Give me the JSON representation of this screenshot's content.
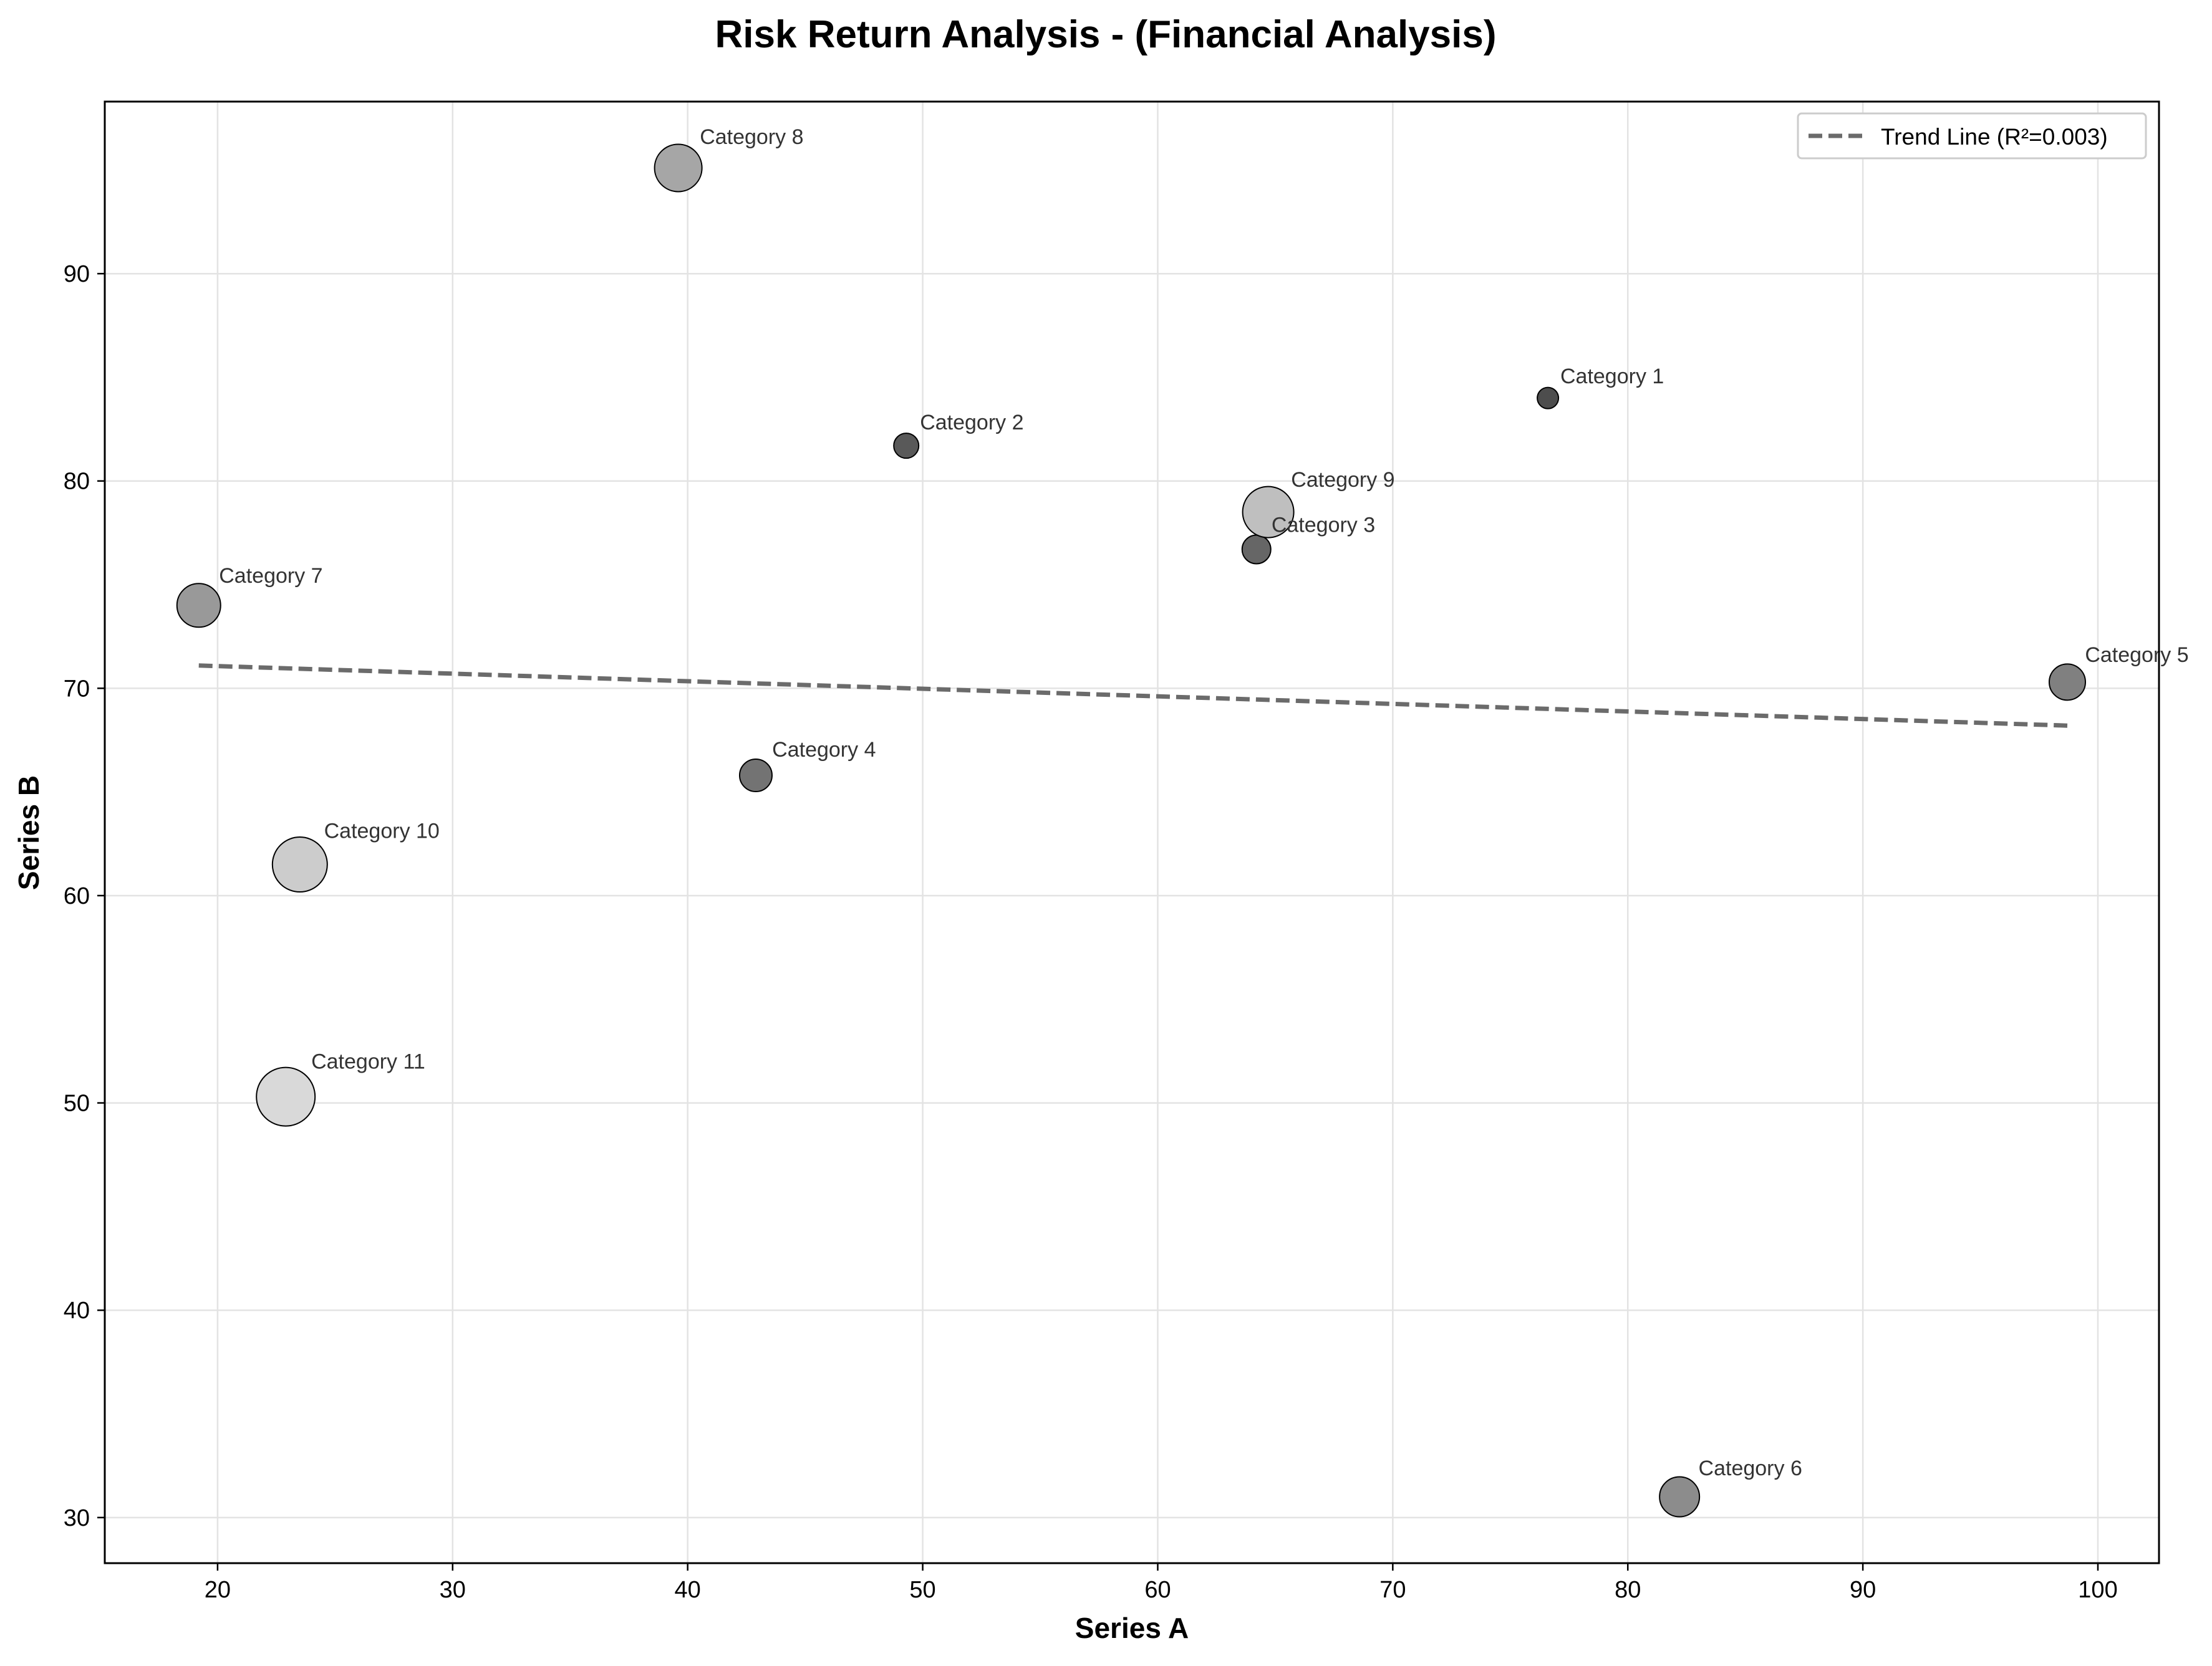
{
  "chart_data": {
    "type": "scatter",
    "title": "Risk Return Analysis - (Financial Analysis)",
    "xlabel": "Series A",
    "ylabel": "Series B",
    "xlim": [
      15.2,
      102.6
    ],
    "ylim": [
      27.8,
      98.3
    ],
    "xticks": [
      20,
      30,
      40,
      50,
      60,
      70,
      80,
      90,
      100
    ],
    "yticks": [
      30,
      40,
      50,
      60,
      70,
      80,
      90
    ],
    "grid": true,
    "legend_position": "top-right",
    "points": [
      {
        "label": "Category 1",
        "x": 76.6,
        "y": 84.0,
        "size": 1,
        "color": "#4d4d4d"
      },
      {
        "label": "Category 2",
        "x": 49.3,
        "y": 81.7,
        "size": 2,
        "color": "#595959"
      },
      {
        "label": "Category 3",
        "x": 64.2,
        "y": 76.7,
        "size": 3,
        "color": "#666666"
      },
      {
        "label": "Category 4",
        "x": 42.9,
        "y": 65.8,
        "size": 4,
        "color": "#737373"
      },
      {
        "label": "Category 5",
        "x": 98.7,
        "y": 70.3,
        "size": 5,
        "color": "#808080"
      },
      {
        "label": "Category 6",
        "x": 82.2,
        "y": 31.0,
        "size": 6,
        "color": "#8c8c8c"
      },
      {
        "label": "Category 7",
        "x": 19.2,
        "y": 74.0,
        "size": 7,
        "color": "#999999"
      },
      {
        "label": "Category 8",
        "x": 39.6,
        "y": 95.1,
        "size": 8,
        "color": "#a6a6a6"
      },
      {
        "label": "Category 9",
        "x": 64.7,
        "y": 78.5,
        "size": 9,
        "color": "#bfbfbf"
      },
      {
        "label": "Category 10",
        "x": 23.5,
        "y": 61.5,
        "size": 10,
        "color": "#cccccc"
      },
      {
        "label": "Category 11",
        "x": 22.9,
        "y": 50.3,
        "size": 11,
        "color": "#d9d9d9"
      }
    ],
    "trend_line": {
      "label": "Trend Line (R²=0.003)",
      "x": [
        19.2,
        98.7
      ],
      "y": [
        71.1,
        68.2
      ],
      "color": "#6b6b6b",
      "style": "dashed"
    }
  }
}
